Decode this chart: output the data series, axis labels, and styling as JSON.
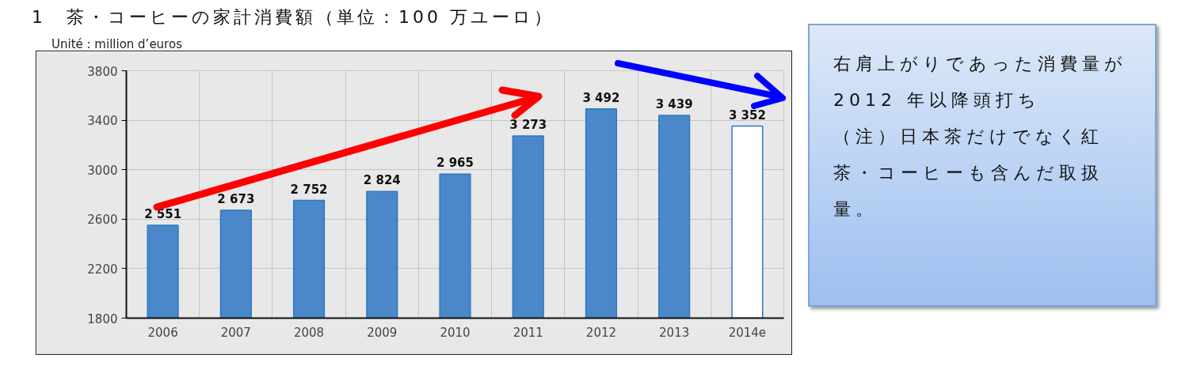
{
  "chart_data": {
    "type": "bar",
    "title": "1　茶・コーヒーの家計消費額（単位：100 万ユーロ）",
    "subtitle": "Unité : million d’euros",
    "categories": [
      "2006",
      "2007",
      "2008",
      "2009",
      "2010",
      "2011",
      "2012",
      "2013",
      "2014e"
    ],
    "values": [
      2551,
      2673,
      2752,
      2824,
      2965,
      3273,
      3492,
      3439,
      3352
    ],
    "colors": [
      "#4a88c9",
      "#4a88c9",
      "#4a88c9",
      "#4a88c9",
      "#4a88c9",
      "#4a88c9",
      "#4a88c9",
      "#4a88c9",
      "#ffffff"
    ],
    "value_labels": [
      "2 551",
      "2 673",
      "2 752",
      "2 824",
      "2 965",
      "3 273",
      "3 492",
      "3 439",
      "3 352"
    ],
    "ylim": [
      1800,
      3800
    ],
    "yticks": [
      1800,
      2200,
      2600,
      3000,
      3400,
      3800
    ],
    "grid": true,
    "annotations": [
      "右肩上がりであった消費量が 2012 年以降頭打ち",
      "（注）日本茶だけでなく紅茶・コーヒーも含んだ取扱量。"
    ]
  }
}
